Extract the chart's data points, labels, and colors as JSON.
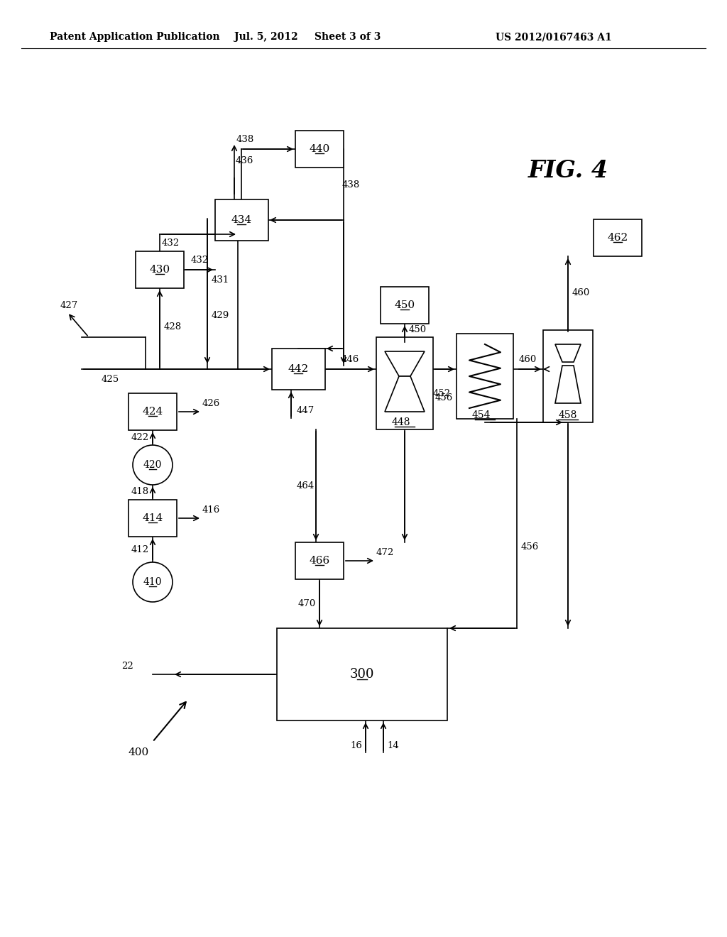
{
  "bg_color": "#ffffff",
  "header_text": "Patent Application Publication",
  "header_date": "Jul. 5, 2012",
  "header_sheet": "Sheet 3 of 3",
  "header_patent": "US 2012/0167463 A1",
  "fig_label": "FIG. 4",
  "diagram_label": "400"
}
